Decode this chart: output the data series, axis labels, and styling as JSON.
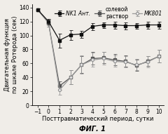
{
  "fig_label": "ФИГ. 1",
  "xlabel": "Посттравматический период, сутки",
  "ylabel": "Двигательная функция\nпо шкале Ротерода (сек)",
  "xlim": [
    -1.5,
    10.5
  ],
  "ylim": [
    0,
    145
  ],
  "yticks": [
    0,
    20,
    40,
    60,
    80,
    100,
    120,
    140
  ],
  "xticks": [
    -1,
    0,
    1,
    2,
    3,
    4,
    5,
    6,
    7,
    8,
    9,
    10
  ],
  "saline_x": [
    -1,
    0,
    1,
    2,
    3,
    4,
    5,
    6,
    7,
    8,
    9,
    10
  ],
  "saline_y": [
    137,
    118,
    28,
    40,
    58,
    67,
    68,
    65,
    63,
    57,
    63,
    70
  ],
  "saline_yerr": [
    2,
    5,
    6,
    10,
    12,
    9,
    8,
    8,
    8,
    8,
    7,
    9
  ],
  "mk801_x": [
    -1,
    0,
    1,
    2,
    3,
    4,
    5,
    6,
    7,
    8,
    9,
    10
  ],
  "mk801_y": [
    137,
    118,
    22,
    40,
    58,
    65,
    67,
    63,
    62,
    58,
    62,
    70
  ],
  "mk801_yerr": [
    2,
    5,
    7,
    10,
    13,
    10,
    9,
    8,
    8,
    8,
    8,
    9
  ],
  "nk1_x": [
    -1,
    0,
    1,
    2,
    3,
    4,
    5,
    6,
    7,
    8,
    9,
    10
  ],
  "nk1_y": [
    137,
    120,
    93,
    101,
    102,
    113,
    115,
    115,
    114,
    114,
    115,
    115
  ],
  "nk1_yerr": [
    2,
    4,
    10,
    7,
    5,
    5,
    4,
    5,
    5,
    4,
    5,
    5
  ],
  "saline_label": "солевой\nраствор",
  "mk801_label": "MK801",
  "nk1_label": "NK1 Ант.",
  "saline_color": "#555555",
  "mk801_color": "#999999",
  "nk1_color": "#111111",
  "bg_color": "#f0ede8",
  "legend_fontsize": 5.5,
  "axis_fontsize": 6.0,
  "tick_fontsize": 5.5,
  "fig_label_fontsize": 7.0
}
